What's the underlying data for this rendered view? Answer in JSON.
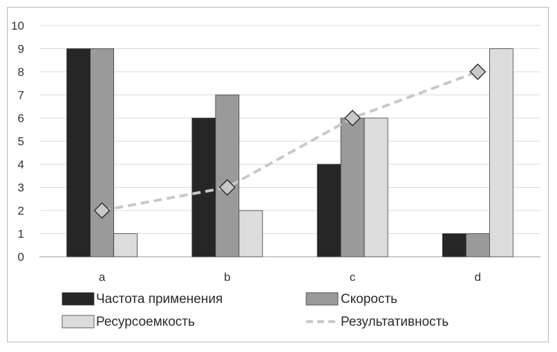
{
  "chart_data": {
    "type": "bar",
    "categories": [
      "a",
      "b",
      "c",
      "d"
    ],
    "series": [
      {
        "name": "Частота применения",
        "type": "bar",
        "values": [
          9,
          6,
          4,
          1
        ],
        "color": "#262626"
      },
      {
        "name": "Скорость",
        "type": "bar",
        "values": [
          9,
          7,
          6,
          1
        ],
        "color": "#9a9a9a"
      },
      {
        "name": "Ресурсоемкость",
        "type": "bar",
        "values": [
          1,
          2,
          6,
          9
        ],
        "color": "#dcdcdc"
      },
      {
        "name": "Результативность",
        "type": "line",
        "values": [
          2,
          3,
          6,
          8
        ],
        "color": "#c8c8c8",
        "line_style": "dashed",
        "marker": "diamond"
      }
    ],
    "y_ticks": [
      "0",
      "1",
      "2",
      "3",
      "4",
      "5",
      "6",
      "7",
      "8",
      "9",
      "10"
    ],
    "ylim": [
      0,
      10
    ],
    "grid": true,
    "legend_position": "bottom"
  }
}
